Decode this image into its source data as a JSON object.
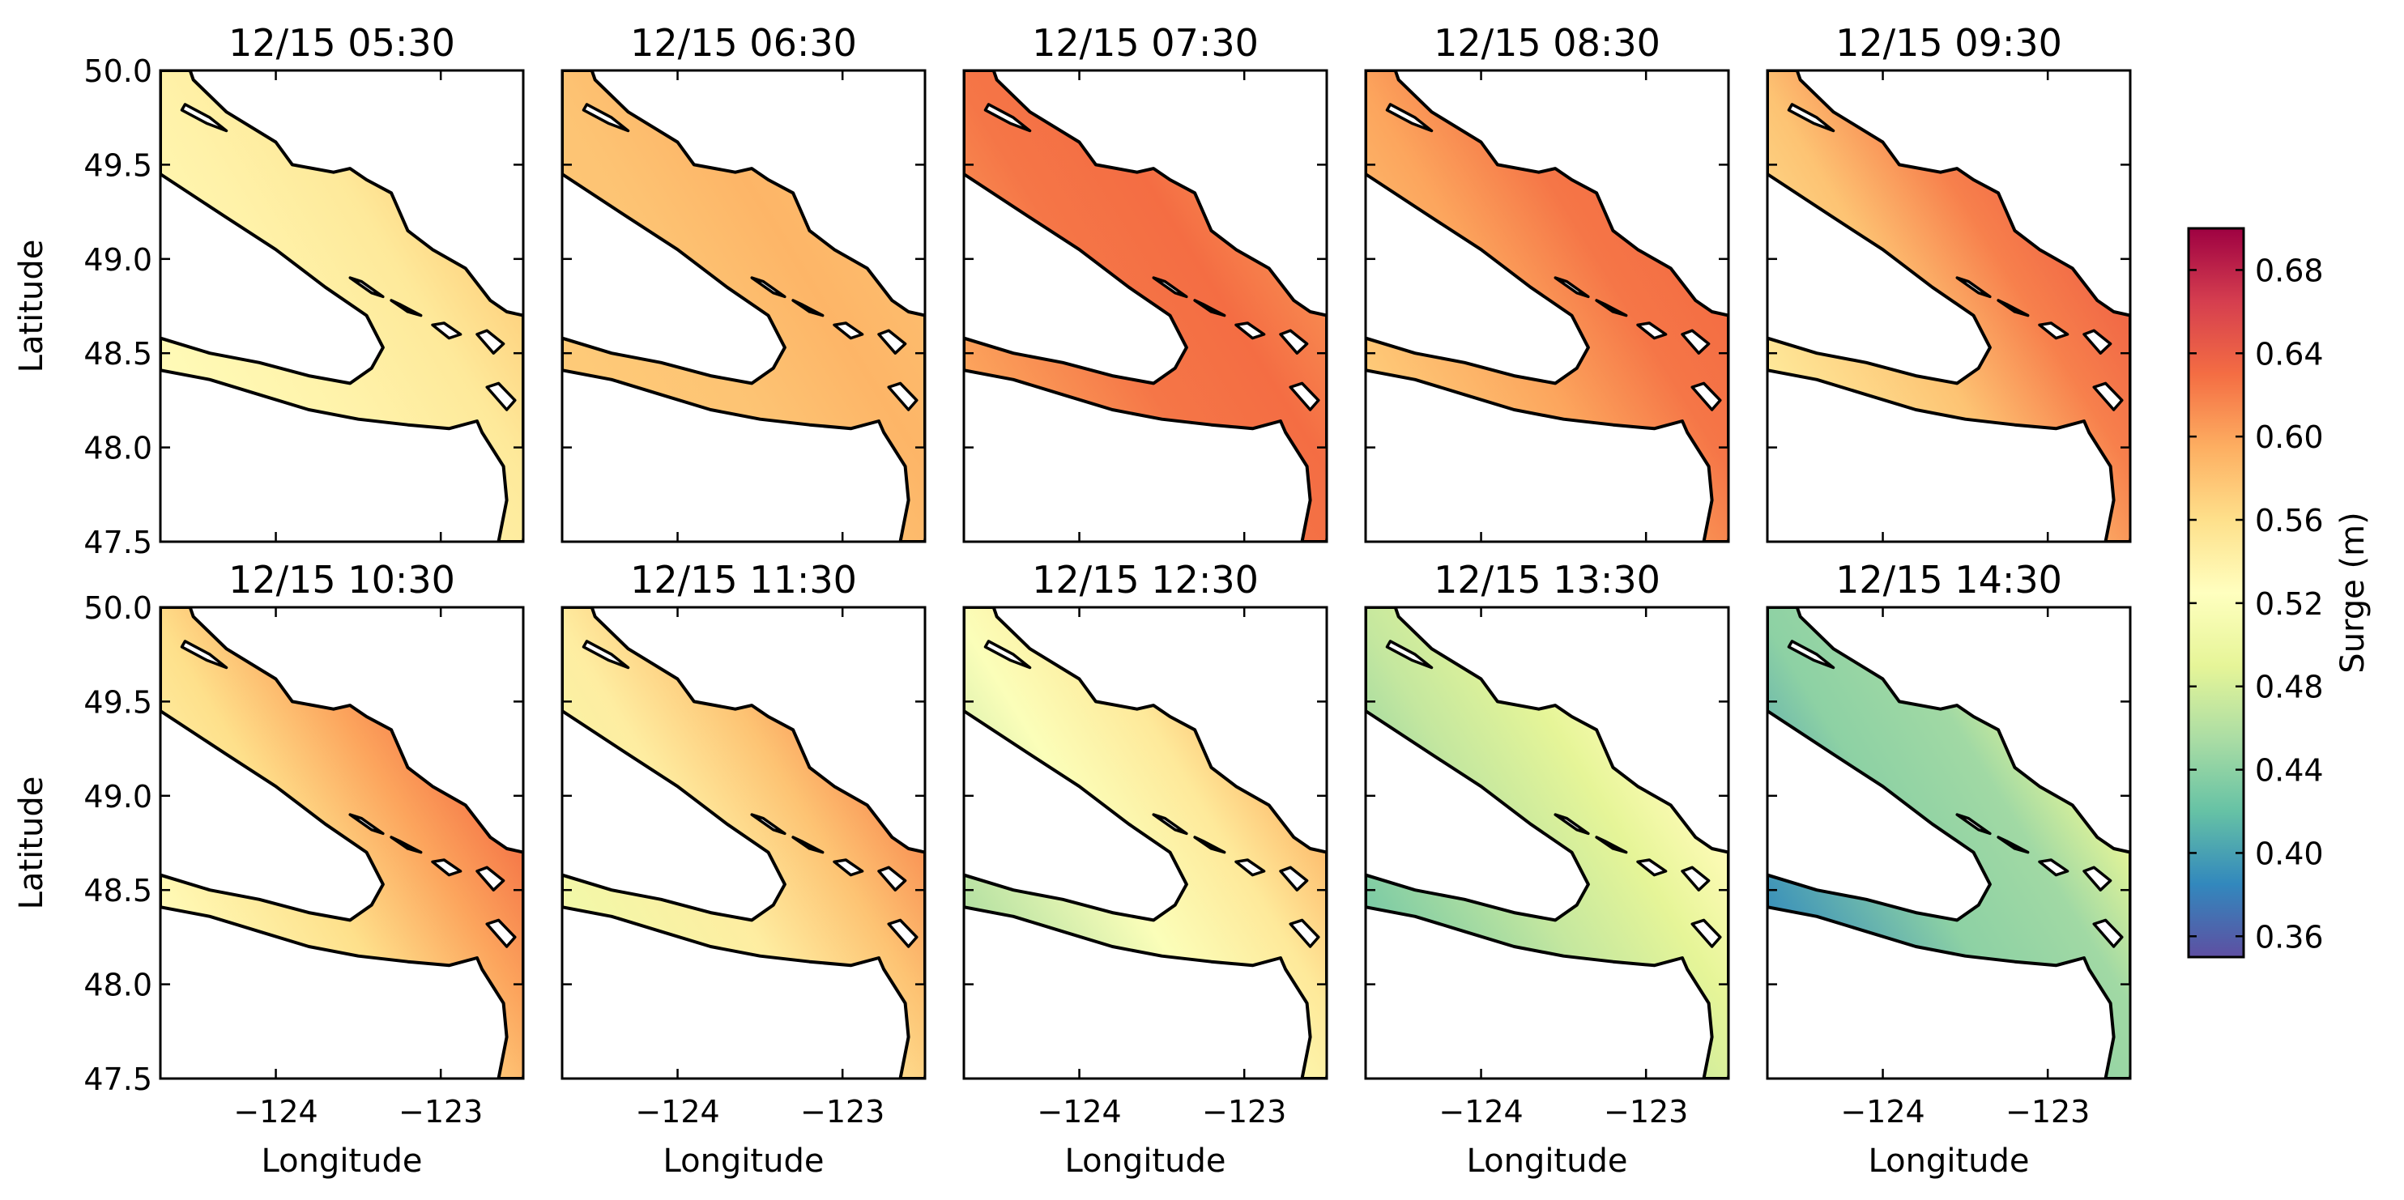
{
  "chart_data": {
    "type": "heatmap",
    "description_units": "Surge (m)",
    "layout": {
      "rows": 2,
      "cols": 5
    },
    "panels": [
      {
        "title": "12/15 05:30",
        "strait_of_georgia": 0.57,
        "juan_de_fuca_west": 0.53,
        "juan_de_fuca_east": 0.54,
        "puget_sound": 0.56,
        "haro_strait": 0.55
      },
      {
        "title": "12/15 06:30",
        "strait_of_georgia": 0.585,
        "juan_de_fuca_west": 0.575,
        "juan_de_fuca_east": 0.58,
        "puget_sound": 0.6,
        "haro_strait": 0.59
      },
      {
        "title": "12/15 07:30",
        "strait_of_georgia": 0.615,
        "juan_de_fuca_west": 0.6,
        "juan_de_fuca_east": 0.625,
        "puget_sound": 0.635,
        "haro_strait": 0.63
      },
      {
        "title": "12/15 08:30",
        "strait_of_georgia": 0.63,
        "juan_de_fuca_west": 0.575,
        "juan_de_fuca_east": 0.6,
        "puget_sound": 0.635,
        "haro_strait": 0.625
      },
      {
        "title": "12/15 09:30",
        "strait_of_georgia": 0.635,
        "juan_de_fuca_west": 0.55,
        "juan_de_fuca_east": 0.58,
        "puget_sound": 0.63,
        "haro_strait": 0.62
      },
      {
        "title": "12/15 10:30",
        "strait_of_georgia": 0.625,
        "juan_de_fuca_west": 0.53,
        "juan_de_fuca_east": 0.56,
        "puget_sound": 0.62,
        "haro_strait": 0.6
      },
      {
        "title": "12/15 11:30",
        "strait_of_georgia": 0.61,
        "juan_de_fuca_west": 0.505,
        "juan_de_fuca_east": 0.545,
        "puget_sound": 0.6,
        "haro_strait": 0.58
      },
      {
        "title": "12/15 12:30",
        "strait_of_georgia": 0.585,
        "juan_de_fuca_west": 0.46,
        "juan_de_fuca_east": 0.52,
        "puget_sound": 0.55,
        "haro_strait": 0.55
      },
      {
        "title": "12/15 13:30",
        "strait_of_georgia": 0.53,
        "juan_de_fuca_west": 0.43,
        "juan_de_fuca_east": 0.47,
        "puget_sound": 0.5,
        "haro_strait": 0.49
      },
      {
        "title": "12/15 14:30",
        "strait_of_georgia": 0.49,
        "juan_de_fuca_west": 0.39,
        "juan_de_fuca_east": 0.44,
        "puget_sound": 0.47,
        "haro_strait": 0.45
      }
    ],
    "xlabel": "Longitude",
    "ylabel": "Latitude",
    "xlim": [
      -124.7,
      -122.5
    ],
    "ylim": [
      47.5,
      50.0
    ],
    "x_ticks": [
      -124,
      -123
    ],
    "x_tick_labels": [
      "−124",
      "−123"
    ],
    "y_ticks": [
      50.0,
      49.5,
      49.0,
      48.5,
      48.0,
      47.5
    ],
    "y_tick_labels": [
      "50.0",
      "49.5",
      "49.0",
      "48.5",
      "48.0",
      "47.5"
    ],
    "colorbar": {
      "label": "Surge (m)",
      "range": [
        0.35,
        0.7
      ],
      "ticks": [
        0.68,
        0.64,
        0.6,
        0.56,
        0.52,
        0.48,
        0.44,
        0.4,
        0.36
      ],
      "tick_labels": [
        "0.68",
        "0.64",
        "0.60",
        "0.56",
        "0.52",
        "0.48",
        "0.44",
        "0.40",
        "0.36"
      ],
      "colormap": "Spectral_r",
      "stops": [
        "#5e4fa2",
        "#3288bd",
        "#66c2a5",
        "#abdda4",
        "#e6f598",
        "#ffffbf",
        "#fee08b",
        "#fdae61",
        "#f46d43",
        "#d53e4f",
        "#9e0142"
      ]
    }
  }
}
